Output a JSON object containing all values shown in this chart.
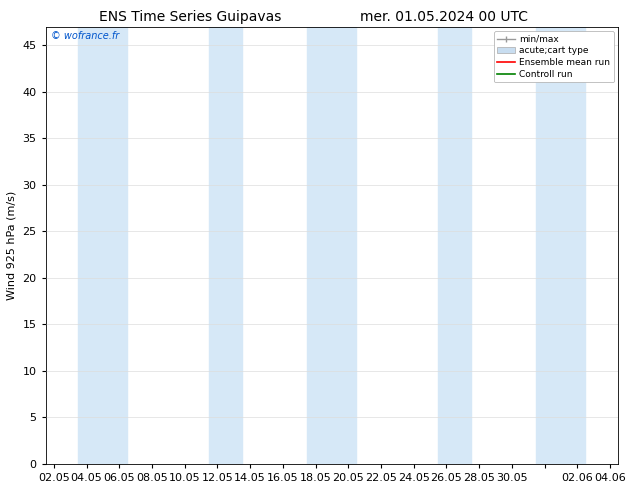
{
  "title_left": "ENS Time Series Guipavas",
  "title_right": "mer. 01.05.2024 00 UTC",
  "ylabel": "Wind 925 hPa (m/s)",
  "watermark": "© wofrance.fr",
  "ylim": [
    0,
    47
  ],
  "yticks": [
    0,
    5,
    10,
    15,
    20,
    25,
    30,
    35,
    40,
    45
  ],
  "xtick_labels": [
    "02.05",
    "04.05",
    "06.05",
    "08.05",
    "10.05",
    "12.05",
    "14.05",
    "16.05",
    "18.05",
    "20.05",
    "22.05",
    "24.05",
    "26.05",
    "28.05",
    "30.05",
    "",
    "02.06",
    "04.06"
  ],
  "shaded_band_centers": [
    3,
    5,
    11,
    12,
    19,
    20,
    25,
    26,
    31,
    32
  ],
  "shaded_band_color": "#d6e8f7",
  "legend_labels": [
    "min/max",
    "acute;cart type",
    "Ensemble mean run",
    "Controll run"
  ],
  "legend_colors": [
    "#999999",
    "#c8ddf0",
    "red",
    "green"
  ],
  "bg_color": "#ffffff",
  "grid_color": "#dddddd",
  "font_size": 8,
  "title_fontsize": 10,
  "watermark_color": "#0055cc"
}
